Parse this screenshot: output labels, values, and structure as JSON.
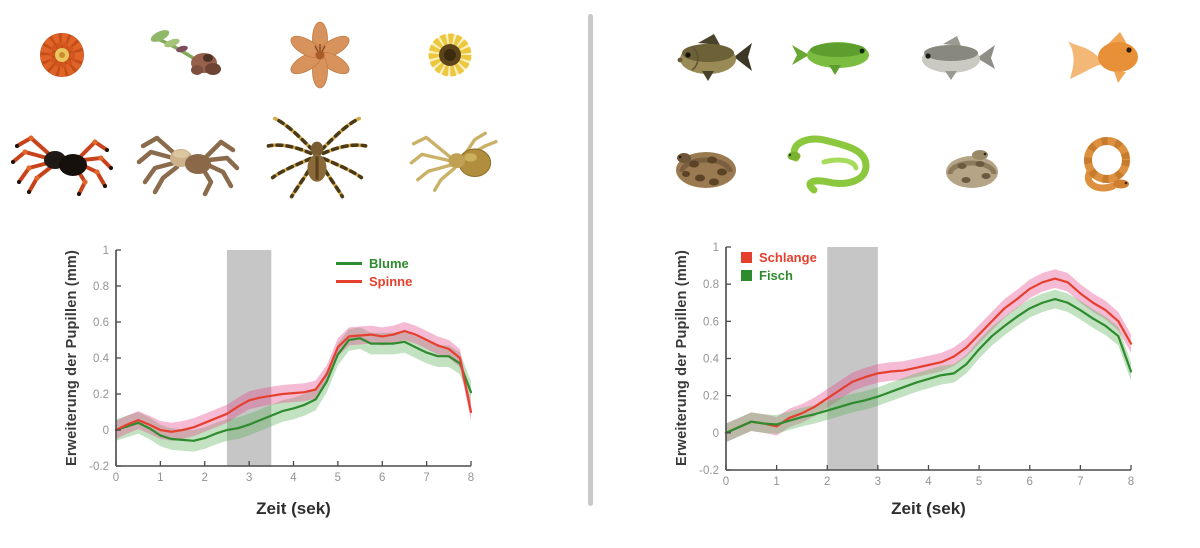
{
  "figure": {
    "left_panel": {
      "stimuli_row1": [
        "marigold-flower",
        "dried-flower",
        "lily-flower",
        "sunflower"
      ],
      "stimuli_row2": [
        "red-knee-tarantula",
        "brown-tarantula",
        "banded-spider",
        "yellow-spider"
      ]
    },
    "right_panel": {
      "stimuli_row1": [
        "carp-fish",
        "green-fish",
        "silver-fish",
        "goldfish"
      ],
      "stimuli_row2": [
        "python-snake",
        "green-snake",
        "viper-snake",
        "corn-snake"
      ]
    }
  },
  "colors": {
    "green_line": "#2e8b2e",
    "red_line": "#e5402e",
    "green_band": "rgba(95,180,95,0.38)",
    "pink_band": "rgba(228,77,143,0.38)",
    "shade_gray": "#c6c6c6",
    "divider_gray": "#c9c9c9",
    "axis": "#4a4a4a"
  },
  "chart_data": [
    {
      "type": "line",
      "panel": "left",
      "title": "",
      "xlabel": "Zeit (sek)",
      "ylabel": "Erweiterung der Pupillen (mm)",
      "xlim": [
        0,
        8
      ],
      "ylim": [
        -0.2,
        1
      ],
      "xticks": [
        0,
        1,
        2,
        3,
        4,
        5,
        6,
        7,
        8
      ],
      "yticks": [
        -0.2,
        0,
        0.2,
        0.4,
        0.6,
        0.8,
        1
      ],
      "grid": false,
      "shaded_interval_x": [
        2.5,
        3.5
      ],
      "shade_color": "#c6c6c6",
      "legend": {
        "position": "top-right",
        "swatch": "line",
        "entries": [
          {
            "label": "Blume",
            "color": "#2e8b2e"
          },
          {
            "label": "Spinne",
            "color": "#e5402e"
          }
        ]
      },
      "x": [
        0,
        0.25,
        0.5,
        0.75,
        1,
        1.25,
        1.5,
        1.75,
        2,
        2.25,
        2.5,
        2.75,
        3,
        3.25,
        3.5,
        3.75,
        4,
        4.25,
        4.5,
        4.75,
        5,
        5.25,
        5.5,
        5.75,
        6,
        6.25,
        6.5,
        6.75,
        7,
        7.25,
        7.5,
        7.75,
        8
      ],
      "series": [
        {
          "name": "Blume",
          "color": "#2e8b2e",
          "band_color": "rgba(95,180,95,0.38)",
          "band_halfwidth": 0.06,
          "values": [
            0,
            0.02,
            0.04,
            0.01,
            -0.03,
            -0.05,
            -0.055,
            -0.06,
            -0.045,
            -0.02,
            0,
            0.01,
            0.03,
            0.055,
            0.08,
            0.105,
            0.12,
            0.14,
            0.17,
            0.27,
            0.42,
            0.5,
            0.51,
            0.48,
            0.48,
            0.48,
            0.49,
            0.46,
            0.43,
            0.41,
            0.41,
            0.37,
            0.21
          ]
        },
        {
          "name": "Spinne",
          "color": "#e5402e",
          "band_color": "rgba(228,77,143,0.38)",
          "band_halfwidth": 0.05,
          "values": [
            0,
            0.03,
            0.055,
            0.03,
            0,
            -0.01,
            0,
            0.015,
            0.04,
            0.065,
            0.09,
            0.13,
            0.165,
            0.18,
            0.19,
            0.2,
            0.205,
            0.21,
            0.225,
            0.31,
            0.46,
            0.52,
            0.525,
            0.53,
            0.52,
            0.53,
            0.55,
            0.53,
            0.5,
            0.47,
            0.45,
            0.4,
            0.1
          ]
        }
      ]
    },
    {
      "type": "line",
      "panel": "right",
      "title": "",
      "xlabel": "Zeit (sek)",
      "ylabel": "Erweiterung der Pupillen (mm)",
      "xlim": [
        0,
        8
      ],
      "ylim": [
        -0.2,
        1
      ],
      "xticks": [
        0,
        1,
        2,
        3,
        4,
        5,
        6,
        7,
        8
      ],
      "yticks": [
        -0.2,
        0,
        0.2,
        0.4,
        0.6,
        0.8,
        1
      ],
      "grid": false,
      "shaded_interval_x": [
        2,
        3
      ],
      "shade_color": "#c6c6c6",
      "legend": {
        "position": "top-left",
        "swatch": "square",
        "entries": [
          {
            "label": "Schlange",
            "color": "#e5402e"
          },
          {
            "label": "Fisch",
            "color": "#2e8b2e"
          }
        ]
      },
      "x": [
        0,
        0.25,
        0.5,
        0.75,
        1,
        1.25,
        1.5,
        1.75,
        2,
        2.25,
        2.5,
        2.75,
        3,
        3.25,
        3.5,
        3.75,
        4,
        4.25,
        4.5,
        4.75,
        5,
        5.25,
        5.5,
        5.75,
        6,
        6.25,
        6.5,
        6.75,
        7,
        7.25,
        7.5,
        7.75,
        8
      ],
      "series": [
        {
          "name": "Schlange",
          "color": "#e5402e",
          "band_color": "rgba(228,77,143,0.38)",
          "band_halfwidth": 0.05,
          "values": [
            0,
            0.03,
            0.06,
            0.05,
            0.035,
            0.08,
            0.105,
            0.14,
            0.185,
            0.23,
            0.275,
            0.3,
            0.32,
            0.33,
            0.335,
            0.35,
            0.365,
            0.38,
            0.41,
            0.46,
            0.53,
            0.6,
            0.67,
            0.72,
            0.775,
            0.81,
            0.83,
            0.81,
            0.75,
            0.7,
            0.66,
            0.6,
            0.48
          ]
        },
        {
          "name": "Fisch",
          "color": "#2e8b2e",
          "band_color": "rgba(95,180,95,0.38)",
          "band_halfwidth": 0.05,
          "values": [
            0,
            0.03,
            0.06,
            0.05,
            0.045,
            0.065,
            0.085,
            0.1,
            0.12,
            0.14,
            0.16,
            0.175,
            0.195,
            0.22,
            0.245,
            0.27,
            0.29,
            0.31,
            0.32,
            0.37,
            0.45,
            0.52,
            0.575,
            0.625,
            0.67,
            0.7,
            0.72,
            0.7,
            0.66,
            0.615,
            0.575,
            0.52,
            0.33
          ]
        }
      ]
    }
  ]
}
